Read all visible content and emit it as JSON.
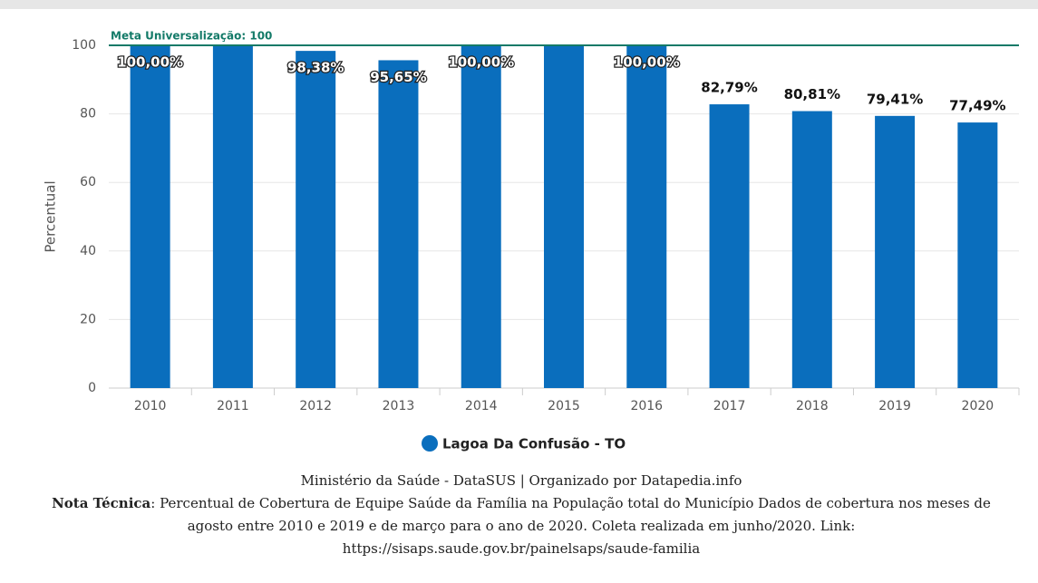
{
  "chart_data": {
    "type": "bar",
    "categories": [
      "2010",
      "2011",
      "2012",
      "2013",
      "2014",
      "2015",
      "2016",
      "2017",
      "2018",
      "2019",
      "2020"
    ],
    "values": [
      100,
      100,
      98.38,
      95.65,
      100,
      100,
      100,
      82.79,
      80.81,
      79.41,
      77.49
    ],
    "value_labels": [
      "100,00%",
      null,
      "98,38%",
      "95,65%",
      "100,00%",
      null,
      "100,00%",
      "82,79%",
      "80,81%",
      "79,41%",
      "77,49%"
    ],
    "color": "#0a6ebd",
    "ylabel": "Percentual",
    "ylim": [
      0,
      100
    ],
    "yticks": [
      0,
      20,
      40,
      60,
      80,
      100
    ],
    "grid": true,
    "target": {
      "label": "Meta Universalização: 100",
      "value": 100,
      "color": "#137a68"
    },
    "legend": [
      "Lagoa Da Confusão - TO"
    ],
    "legend_position": "bottom"
  },
  "footer": {
    "source": "Ministério da Saúde - DataSUS | Organizado por Datapedia.info",
    "note_label": "Nota Técnica",
    "note": ": Percentual de Cobertura de Equipe Saúde da Família na População total do Município Dados de cobertura nos meses de agosto entre 2010 e 2019 e de março para o ano de 2020. Coleta realizada em junho/2020. Link: https://sisaps.saude.gov.br/painelsaps/saude-familia"
  }
}
